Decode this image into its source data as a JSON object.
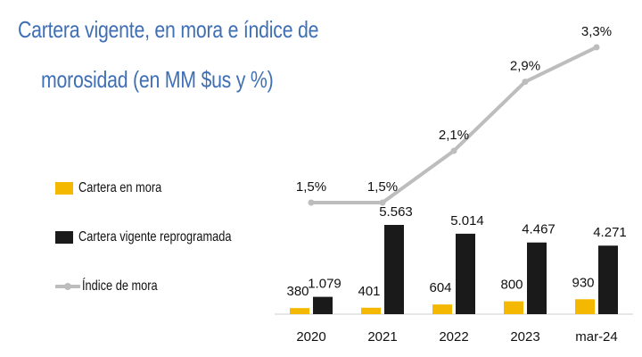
{
  "chart_data": {
    "type": "bar",
    "title_line1": "Cartera vigente, en mora e índice de",
    "title_line2": "morosidad (en MM $us y %)",
    "categories": [
      "2020",
      "2021",
      "2022",
      "2023",
      "mar-24"
    ],
    "series": [
      {
        "name": "Cartera en mora",
        "type": "bar",
        "color": "#f5b800",
        "values": [
          380,
          401,
          604,
          800,
          930
        ],
        "labels": [
          "380",
          "401",
          "604",
          "800",
          "930"
        ]
      },
      {
        "name": "Cartera vigente reprogramada",
        "type": "bar",
        "color": "#1a1a1a",
        "values": [
          1079,
          5563,
          5014,
          4467,
          4271
        ],
        "labels": [
          "1.079",
          "5.563",
          "5.014",
          "4.467",
          "4.271"
        ]
      },
      {
        "name": "Índice de mora",
        "type": "line",
        "color": "#bdbdbd",
        "values": [
          1.5,
          1.5,
          2.1,
          2.9,
          3.3
        ],
        "labels": [
          "1,5%",
          "1,5%",
          "2,1%",
          "2,9%",
          "3,3%"
        ]
      }
    ],
    "legend_position": "left",
    "grid": false
  }
}
